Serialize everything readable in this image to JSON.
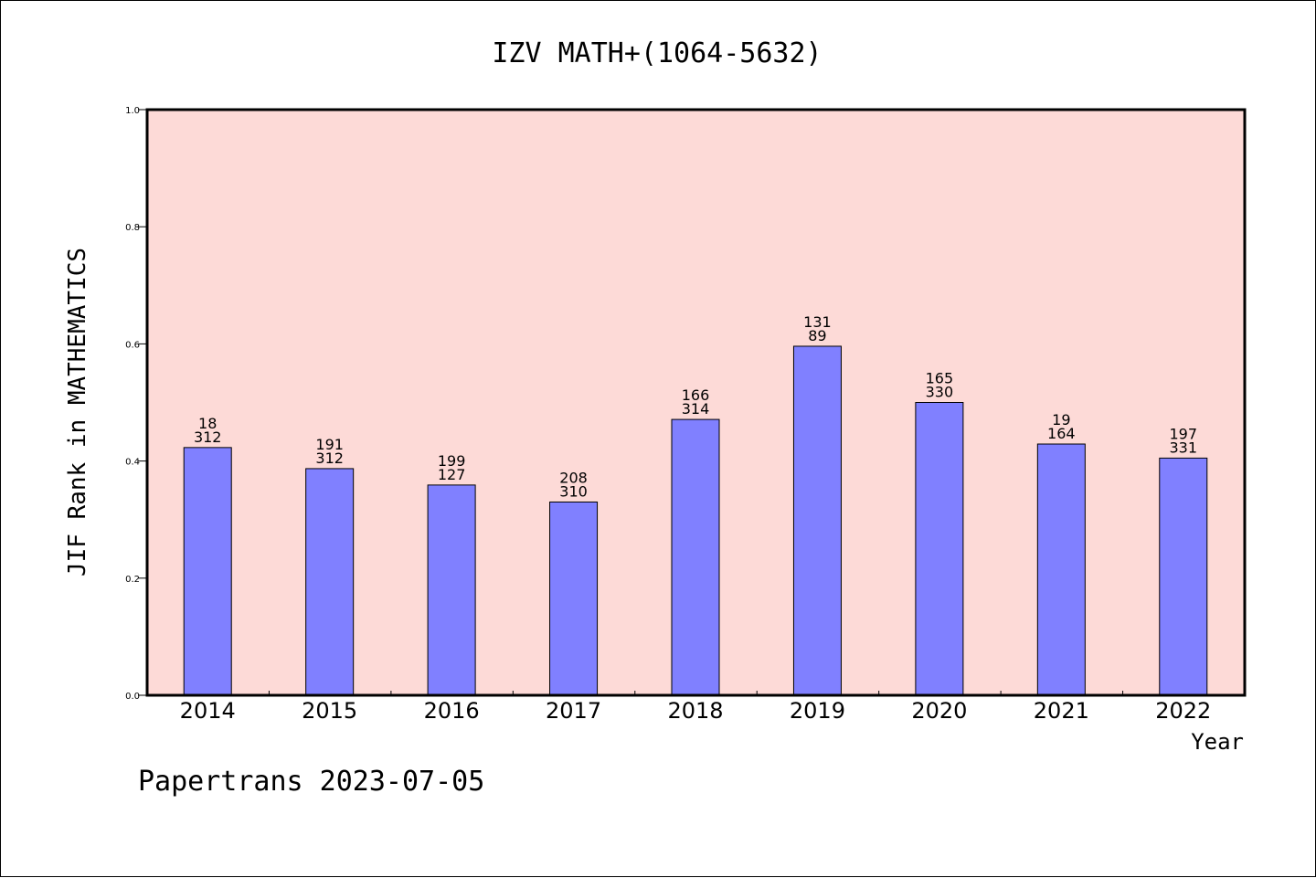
{
  "chart_data": {
    "type": "bar",
    "title": "IZV MATH+(1064-5632)",
    "xlabel": "Year",
    "ylabel": "JIF Rank in MATHEMATICS",
    "ylim": [
      0,
      1.0
    ],
    "yticks": [
      "0.0",
      "0.2",
      "0.4",
      "0.6",
      "0.8",
      "1.0"
    ],
    "categories": [
      "2014",
      "2015",
      "2016",
      "2017",
      "2018",
      "2019",
      "2020",
      "2021",
      "2022"
    ],
    "values": [
      0.423,
      0.387,
      0.359,
      0.33,
      0.471,
      0.596,
      0.5,
      0.429,
      0.405
    ],
    "label_top": [
      "18",
      "191",
      "199",
      "208",
      "166",
      "131",
      "165",
      "19",
      "197"
    ],
    "label_bottom": [
      "312",
      "312",
      "127",
      "310",
      "314",
      "89",
      "330",
      "164",
      "331"
    ],
    "grid": false,
    "colors": {
      "plot_bg": "#fddad7",
      "bar": "#8080ff",
      "bar_edge": "#000000"
    }
  },
  "footer": "Papertrans 2023-07-05"
}
